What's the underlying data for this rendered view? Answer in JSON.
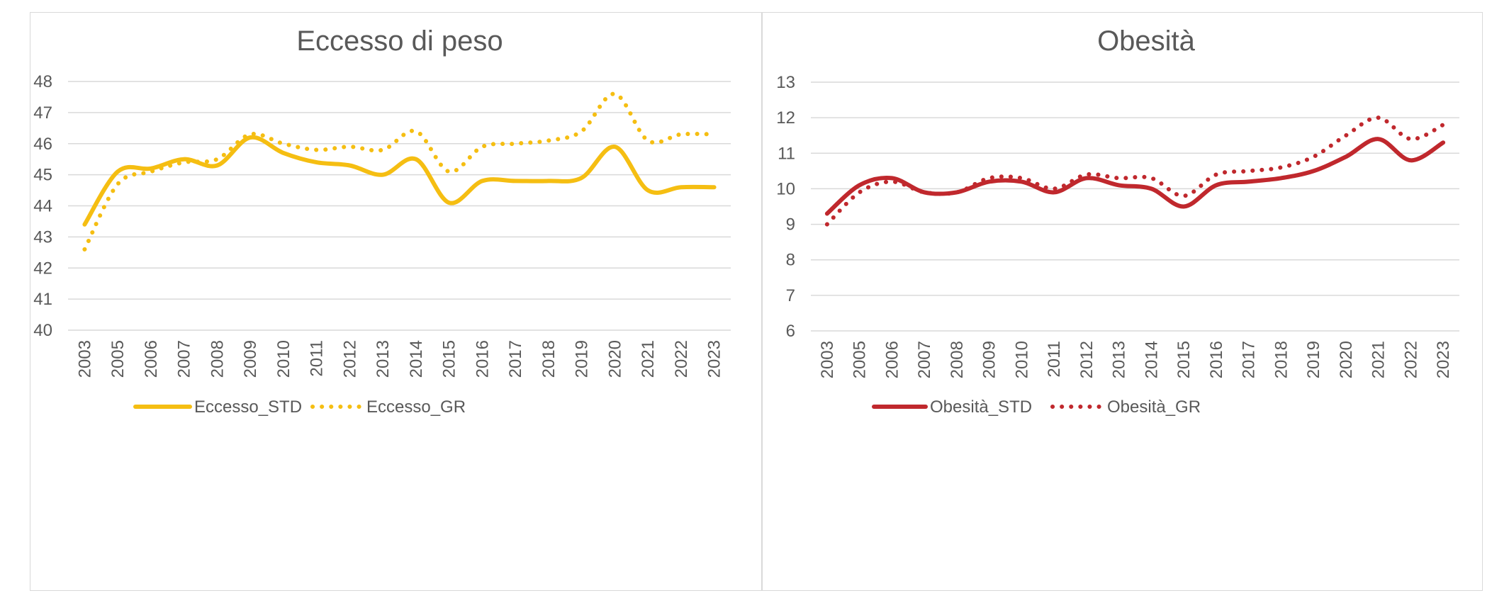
{
  "chart_data": [
    {
      "type": "line",
      "title": "Eccesso di peso",
      "xlabel": "",
      "ylabel": "",
      "ylim": [
        40,
        48
      ],
      "yticks": [
        40,
        41,
        42,
        43,
        44,
        45,
        46,
        47,
        48
      ],
      "grid": true,
      "legend": "bottom-center",
      "categories": [
        "2003",
        "2005",
        "2006",
        "2007",
        "2008",
        "2009",
        "2010",
        "2011",
        "2012",
        "2013",
        "2014",
        "2015",
        "2016",
        "2017",
        "2018",
        "2019",
        "2020",
        "2021",
        "2022",
        "2023"
      ],
      "series": [
        {
          "name": "Eccesso_STD",
          "style": "solid",
          "color": "#F5BE12",
          "values": [
            43.4,
            45.1,
            45.2,
            45.5,
            45.3,
            46.2,
            45.7,
            45.4,
            45.3,
            45.0,
            45.5,
            44.1,
            44.8,
            44.8,
            44.8,
            44.9,
            45.9,
            44.5,
            44.6,
            44.6
          ]
        },
        {
          "name": "Eccesso_GR",
          "style": "dotted",
          "color": "#F5BE12",
          "values": [
            42.6,
            44.7,
            45.1,
            45.4,
            45.5,
            46.3,
            46.0,
            45.8,
            45.9,
            45.8,
            46.4,
            45.1,
            45.9,
            46.0,
            46.1,
            46.4,
            47.6,
            46.1,
            46.3,
            46.3
          ]
        }
      ]
    },
    {
      "type": "line",
      "title": "Obesità",
      "xlabel": "",
      "ylabel": "",
      "ylim": [
        6,
        13
      ],
      "yticks": [
        6,
        7,
        8,
        9,
        10,
        11,
        12,
        13
      ],
      "grid": true,
      "legend": "bottom-center",
      "categories": [
        "2003",
        "2005",
        "2006",
        "2007",
        "2008",
        "2009",
        "2010",
        "2011",
        "2012",
        "2013",
        "2014",
        "2015",
        "2016",
        "2017",
        "2018",
        "2019",
        "2020",
        "2021",
        "2022",
        "2023"
      ],
      "series": [
        {
          "name": "Obesità_STD",
          "style": "solid",
          "color": "#C0282D",
          "values": [
            9.3,
            10.1,
            10.3,
            9.9,
            9.9,
            10.2,
            10.2,
            9.9,
            10.3,
            10.1,
            10.0,
            9.5,
            10.1,
            10.2,
            10.3,
            10.5,
            10.9,
            11.4,
            10.8,
            11.3
          ]
        },
        {
          "name": "Obesità_GR",
          "style": "dotted",
          "color": "#C0282D",
          "values": [
            9.0,
            9.9,
            10.2,
            9.9,
            9.9,
            10.3,
            10.3,
            10.0,
            10.4,
            10.3,
            10.3,
            9.8,
            10.4,
            10.5,
            10.6,
            10.9,
            11.5,
            12.0,
            11.4,
            11.8
          ]
        }
      ]
    }
  ]
}
